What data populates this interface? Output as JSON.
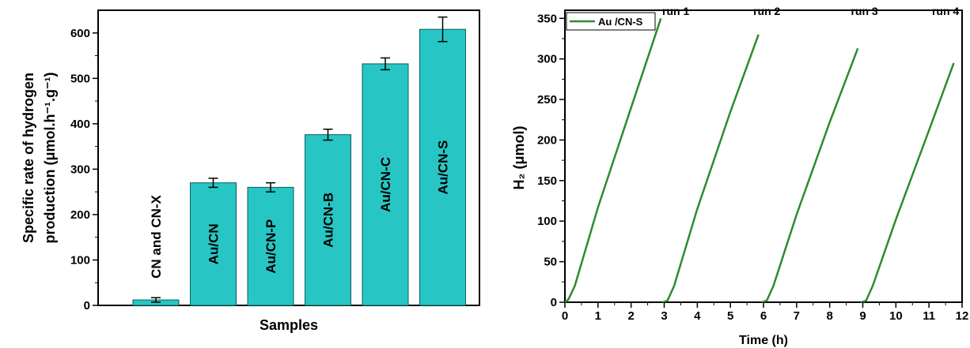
{
  "colors": {
    "bar": "#27c6c4",
    "bar_edge": "#0a5e5c",
    "line": "#2e8b2e",
    "axis": "#000000"
  },
  "chart_data": [
    {
      "type": "bar",
      "categories": [
        "CN and CN-X",
        "Au/CN",
        "Au/CN-P",
        "Au/CN-B",
        "Au/CN-C",
        "Au/CN-S"
      ],
      "values": [
        12,
        270,
        260,
        376,
        532,
        608
      ],
      "errors": [
        5,
        10,
        10,
        12,
        13,
        27
      ],
      "xlabel": "Samples",
      "ylabel_line1": "Specific rate of hydrogen",
      "ylabel_line2": "production (μmol.h⁻¹.g⁻¹)",
      "ylim": [
        0,
        650
      ],
      "yticks": [
        0,
        100,
        200,
        300,
        400,
        500,
        600
      ],
      "ytick_labels": [
        "0",
        "100",
        "200",
        "300",
        "400",
        "500",
        "600"
      ]
    },
    {
      "type": "line",
      "xlabel": "Time (h)",
      "ylabel": "H₂ (μmol)",
      "xlim": [
        0,
        12
      ],
      "ylim": [
        0,
        360
      ],
      "xticks": [
        0,
        1,
        2,
        3,
        4,
        5,
        6,
        7,
        8,
        9,
        10,
        11,
        12
      ],
      "xtick_labels": [
        "0",
        "1",
        "2",
        "3",
        "4",
        "5",
        "6",
        "7",
        "8",
        "9",
        "10",
        "11",
        "12"
      ],
      "yticks": [
        0,
        50,
        100,
        150,
        200,
        250,
        300,
        350
      ],
      "ytick_labels": [
        "0",
        "50",
        "100",
        "150",
        "200",
        "250",
        "300",
        "350"
      ],
      "legend": "Au /CN-S",
      "legend_position": "top-left",
      "series": [
        {
          "name": "Au /CN-S",
          "runs": [
            {
              "x": [
                0,
                0.1,
                0.3,
                1.0,
                2.0,
                2.9
              ],
              "y": [
                0,
                3,
                20,
                117,
                240,
                350
              ]
            },
            {
              "x": [
                2.95,
                3.1,
                3.3,
                4.0,
                5.0,
                5.85
              ],
              "y": [
                0,
                2,
                20,
                115,
                235,
                330
              ]
            },
            {
              "x": [
                5.95,
                6.1,
                6.3,
                7.0,
                8.0,
                8.85
              ],
              "y": [
                0,
                2,
                20,
                108,
                222,
                313
              ]
            },
            {
              "x": [
                8.95,
                9.1,
                9.3,
                10.0,
                11.0,
                11.75
              ],
              "y": [
                0,
                2,
                20,
                102,
                212,
                295
              ]
            }
          ]
        }
      ],
      "annotations": [
        {
          "text": "run 1",
          "x": 3.35,
          "y": 352
        },
        {
          "text": "run 2",
          "x": 6.1,
          "y": 352
        },
        {
          "text": "run 3",
          "x": 9.05,
          "y": 352
        },
        {
          "text": "run 4",
          "x": 11.5,
          "y": 352
        }
      ]
    }
  ]
}
